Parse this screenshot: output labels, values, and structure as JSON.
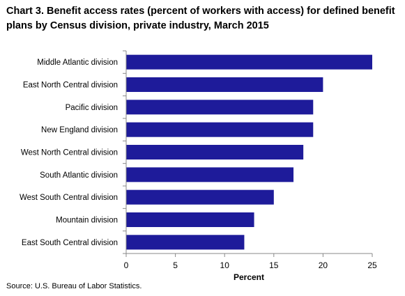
{
  "chart_data": {
    "type": "bar",
    "orientation": "horizontal",
    "title": "Chart 3. Benefit access rates (percent of workers with access) for defined benefit plans by Census division, private industry, March 2015",
    "xlabel": "Percent",
    "ylabel": "",
    "categories": [
      "Middle Atlantic division",
      "East North Central division",
      "Pacific division",
      "New England division",
      "West North Central division",
      "South Atlantic division",
      "West South Central division",
      "Mountain division",
      "East South Central division"
    ],
    "values": [
      25,
      20,
      19,
      19,
      18,
      17,
      15,
      13,
      12
    ],
    "xlim": [
      0,
      25
    ],
    "xticks": [
      "0",
      "5",
      "10",
      "15",
      "20",
      "25"
    ],
    "grid": false,
    "bar_color": "#1e1b9a"
  },
  "source": "Source: U.S. Bureau of Labor Statistics."
}
